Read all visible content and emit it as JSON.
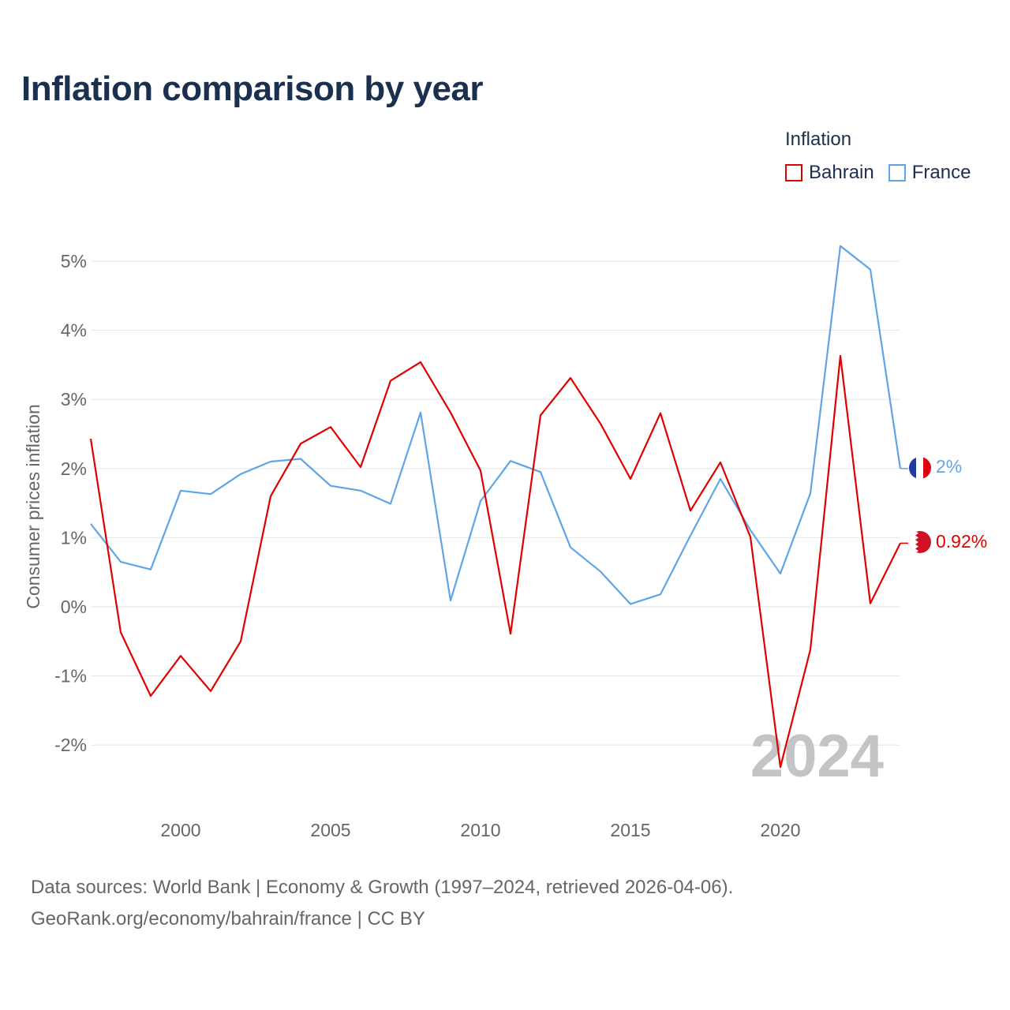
{
  "title": "Inflation comparison by year",
  "legend": {
    "title": "Inflation",
    "items": [
      {
        "label": "Bahrain",
        "color": "#e00000"
      },
      {
        "label": "France",
        "color": "#5fa5e6"
      }
    ]
  },
  "footer": {
    "line1": "Data sources: World Bank | Economy & Growth (1997–2024, retrieved 2026-04-06).",
    "line2": "GeoRank.org/economy/bahrain/france | CC BY"
  },
  "chart_data": {
    "type": "line",
    "ylabel": "Consumer prices inflation",
    "xlabel": "",
    "watermark": "2024",
    "xlim": [
      1997,
      2024
    ],
    "ylim": [
      -2.6,
      5.3
    ],
    "yticks": [
      -2,
      -1,
      0,
      1,
      2,
      3,
      4,
      5
    ],
    "ytick_labels": [
      "-2%",
      "-1%",
      "0%",
      "1%",
      "2%",
      "3%",
      "4%",
      "5%"
    ],
    "xticks": [
      2000,
      2005,
      2010,
      2015,
      2020
    ],
    "xtick_labels": [
      "2000",
      "2005",
      "2010",
      "2015",
      "2020"
    ],
    "x": [
      1997,
      1998,
      1999,
      2000,
      2001,
      2002,
      2003,
      2004,
      2005,
      2006,
      2007,
      2008,
      2009,
      2010,
      2011,
      2012,
      2013,
      2014,
      2015,
      2016,
      2017,
      2018,
      2019,
      2020,
      2021,
      2022,
      2023,
      2024
    ],
    "series": [
      {
        "name": "Bahrain",
        "color": "#e00000",
        "end_label": "0.92%",
        "values": [
          2.43,
          -0.37,
          -1.29,
          -0.71,
          -1.22,
          -0.5,
          1.6,
          2.36,
          2.6,
          2.02,
          3.27,
          3.54,
          2.81,
          1.97,
          -0.39,
          2.77,
          3.31,
          2.65,
          1.85,
          2.8,
          1.39,
          2.09,
          1.01,
          -2.32,
          -0.62,
          3.63,
          0.05,
          0.92
        ]
      },
      {
        "name": "France",
        "color": "#5fa5e6",
        "end_label": "2%",
        "values": [
          1.2,
          0.65,
          0.54,
          1.68,
          1.63,
          1.92,
          2.1,
          2.14,
          1.75,
          1.68,
          1.49,
          2.81,
          0.09,
          1.53,
          2.11,
          1.95,
          0.86,
          0.51,
          0.04,
          0.18,
          1.03,
          1.85,
          1.11,
          0.48,
          1.64,
          5.22,
          4.88,
          2.0
        ]
      }
    ]
  }
}
